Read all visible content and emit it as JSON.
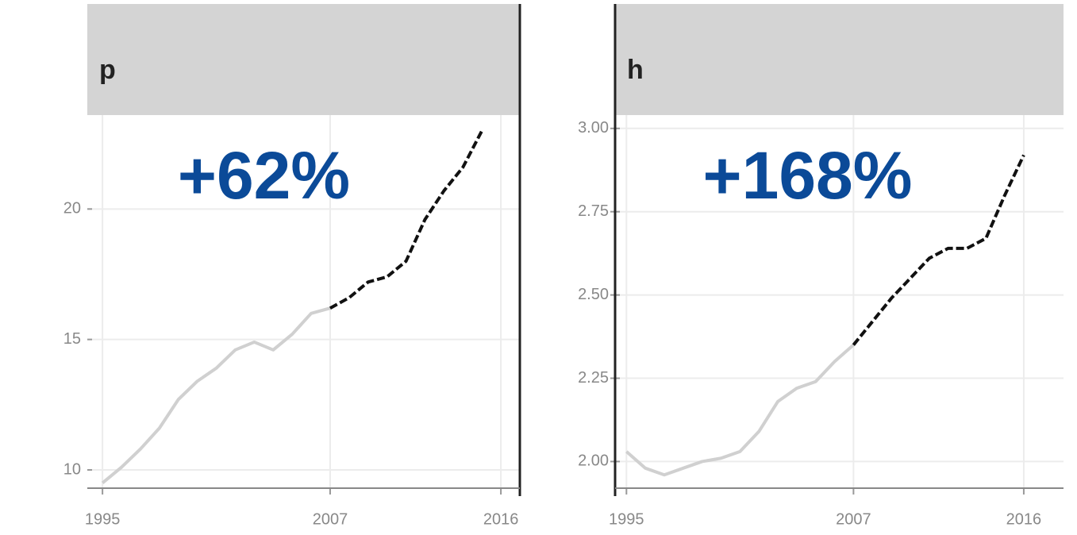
{
  "chart_data": [
    {
      "type": "line",
      "panel_label": "p",
      "annotation": "+62%",
      "x": [
        1995,
        1996,
        1997,
        1998,
        1999,
        2000,
        2001,
        2002,
        2003,
        2004,
        2005,
        2006,
        2007,
        2008,
        2009,
        2010,
        2011,
        2012,
        2013,
        2014,
        2015
      ],
      "series": [
        {
          "color": "#d0d0d0",
          "dashed": false,
          "values": [
            9.5,
            10.1,
            10.8,
            11.6,
            12.7,
            13.4,
            13.9,
            14.6,
            14.9,
            14.6,
            15.2,
            16.0,
            16.2,
            null,
            null,
            null,
            null,
            null,
            null,
            null,
            null
          ]
        },
        {
          "color": "#111111",
          "dashed": true,
          "values": [
            null,
            null,
            null,
            null,
            null,
            null,
            null,
            null,
            null,
            null,
            null,
            null,
            16.2,
            16.6,
            17.2,
            17.4,
            18.0,
            19.6,
            20.7,
            21.6,
            23.0
          ]
        }
      ],
      "xlim": [
        1994.2,
        2017
      ],
      "ylim": [
        9.3,
        23.6
      ],
      "xticks": [
        1995,
        2007,
        2016
      ],
      "yticks": [
        10,
        15,
        20
      ],
      "grid": true
    },
    {
      "type": "line",
      "panel_label": "h",
      "annotation": "+168%",
      "x": [
        1995,
        1996,
        1997,
        1998,
        1999,
        2000,
        2001,
        2002,
        2003,
        2004,
        2005,
        2006,
        2007,
        2008,
        2009,
        2010,
        2011,
        2012,
        2013,
        2014,
        2015,
        2016
      ],
      "series": [
        {
          "color": "#d0d0d0",
          "dashed": false,
          "values": [
            2.03,
            1.98,
            1.96,
            1.98,
            2.0,
            2.01,
            2.03,
            2.09,
            2.18,
            2.22,
            2.24,
            2.3,
            2.35,
            null,
            null,
            null,
            null,
            null,
            null,
            null,
            null,
            null
          ]
        },
        {
          "color": "#111111",
          "dashed": true,
          "values": [
            null,
            null,
            null,
            null,
            null,
            null,
            null,
            null,
            null,
            null,
            null,
            null,
            2.35,
            2.42,
            2.49,
            2.55,
            2.61,
            2.64,
            2.64,
            2.67,
            2.8,
            2.92
          ]
        }
      ],
      "xlim": [
        1994.4,
        2018.1
      ],
      "ylim": [
        1.92,
        3.04
      ],
      "xticks": [
        1995,
        2007,
        2016
      ],
      "yticks": [
        {
          "value": 2,
          "label": "2.00"
        },
        {
          "value": 2.25,
          "label": "2.25"
        },
        {
          "value": 2.5,
          "label": "2.50"
        },
        {
          "value": 2.75,
          "label": "2.75"
        },
        {
          "value": 3,
          "label": "3.00"
        }
      ],
      "grid": true
    }
  ]
}
